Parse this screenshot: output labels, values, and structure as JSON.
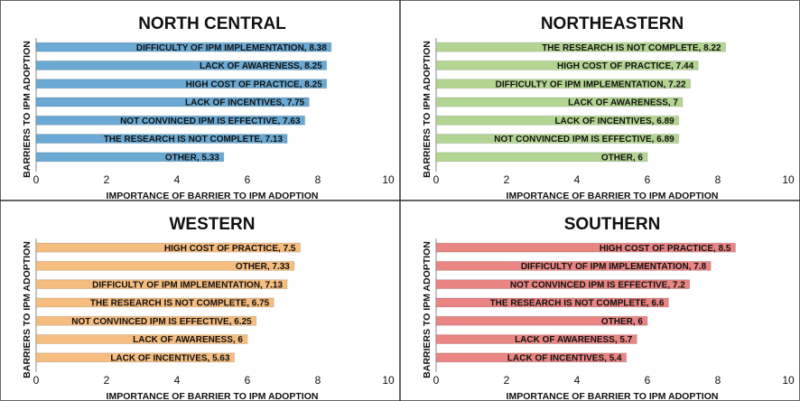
{
  "chart_data": [
    {
      "type": "bar",
      "title": "NORTH CENTRAL",
      "orientation": "horizontal",
      "color": "#6aa9d3",
      "x_label": "IMPORTANCE OF BARRIER TO IPM ADOPTION",
      "y_label": "BARRIERS TO IPM ADOPTION",
      "values": [
        8.38,
        8.25,
        8.25,
        7.75,
        7.63,
        7.13,
        5.33
      ],
      "value_labels": [
        "DIFFICULTY OF IPM IMPLEMENTATION, 8.38",
        "LACK OF AWARENESS, 8.25",
        "HIGH COST OF PRACTICE, 8.25",
        "LACK OF INCENTIVES, 7.75",
        "NOT CONVINCED IPM IS EFFECTIVE, 7.63",
        "THE RESEARCH IS NOT COMPLETE, 7.13",
        "OTHER, 5.33"
      ],
      "xlim": [
        0,
        10
      ],
      "xticks": [
        0,
        2,
        4,
        6,
        8,
        10
      ],
      "grid": false
    },
    {
      "type": "bar",
      "title": "NORTHEASTERN",
      "orientation": "horizontal",
      "color": "#b2d592",
      "x_label": "IMPORTANCE OF BARRIER TO IPM ADOPTION",
      "y_label": "BARRIERS TO IPM ADOPTION",
      "values": [
        8.22,
        7.44,
        7.22,
        7,
        6.89,
        6.89,
        6
      ],
      "value_labels": [
        "THE RESEARCH IS NOT COMPLETE, 8.22",
        "HIGH COST OF PRACTICE, 7.44",
        "DIFFICULTY OF IPM IMPLEMENTATION, 7.22",
        "LACK OF AWARENESS, 7",
        "LACK OF INCENTIVES, 6.89",
        "NOT CONVINCED IPM IS EFFECTIVE, 6.89",
        "OTHER, 6"
      ],
      "xlim": [
        0,
        10
      ],
      "xticks": [
        0,
        2,
        4,
        6,
        8,
        10
      ],
      "grid": false
    },
    {
      "type": "bar",
      "title": "WESTERN",
      "orientation": "horizontal",
      "color": "#f5bd80",
      "x_label": "IMPORTANCE OF BARRIER TO IPM ADOPTION",
      "y_label": "BARRIERS TO IPM ADOPTION",
      "values": [
        7.5,
        7.33,
        7.13,
        6.75,
        6.25,
        6,
        5.63
      ],
      "value_labels": [
        "HIGH COST OF PRACTICE, 7.5",
        "OTHER, 7.33",
        "DIFFICULTY OF IPM IMPLEMENTATION, 7.13",
        "THE RESEARCH IS NOT COMPLETE, 6.75",
        "NOT CONVINCED IPM IS EFFECTIVE, 6.25",
        "LACK OF AWARENESS, 6",
        "LACK OF INCENTIVES, 5.63"
      ],
      "xlim": [
        0,
        10
      ],
      "xticks": [
        0,
        2,
        4,
        6,
        8,
        10
      ],
      "grid": false
    },
    {
      "type": "bar",
      "title": "SOUTHERN",
      "orientation": "horizontal",
      "color": "#e98683",
      "x_label": "IMPORTANCE OF BARRIER TO IPM ADOPTION",
      "y_label": "BARRIERS TO IPM ADOPTION",
      "values": [
        8.5,
        7.8,
        7.2,
        6.6,
        6,
        5.7,
        5.4
      ],
      "value_labels": [
        "HIGH COST OF PRACTICE, 8.5",
        "DIFFICULTY OF IPM IMPLEMENTATION, 7.8",
        "NOT CONVINCED IPM IS EFFECTIVE, 7.2",
        "THE RESEARCH IS NOT COMPLETE, 6.6",
        "OTHER, 6",
        "LACK OF AWARENESS, 5.7",
        "LACK OF INCENTIVES, 5.4"
      ],
      "xlim": [
        0,
        10
      ],
      "xticks": [
        0,
        2,
        4,
        6,
        8,
        10
      ],
      "grid": false
    }
  ]
}
